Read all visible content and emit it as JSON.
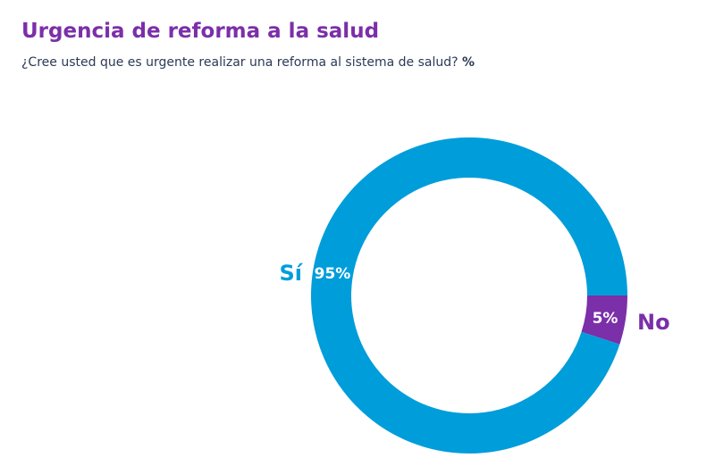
{
  "title": "Urgencia de reforma a la salud",
  "subtitle": "¿Cree usted que es urgente realizar una reforma al sistema de salud?",
  "unit": "%",
  "chart_data": {
    "type": "pie",
    "donut": true,
    "title": "Urgencia de reforma a la salud",
    "slices": [
      {
        "label": "No",
        "value": 5,
        "value_label": "5%",
        "color": "#7b2fa8"
      },
      {
        "label": "Sí",
        "value": 95,
        "value_label": "95%",
        "color": "#009ddb"
      }
    ]
  }
}
